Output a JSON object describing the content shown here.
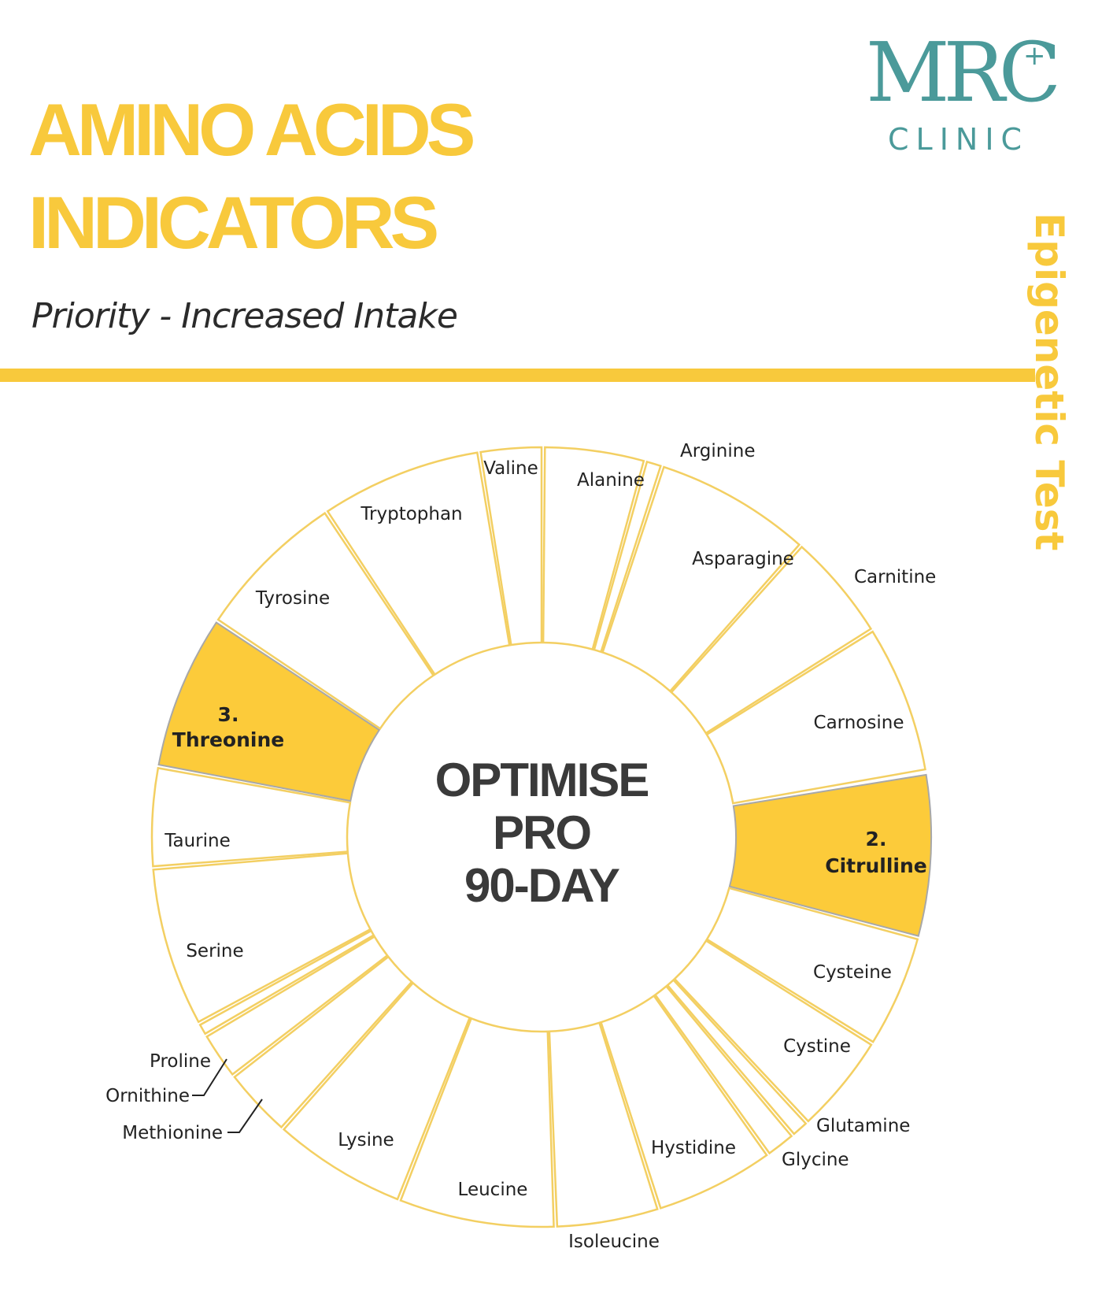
{
  "header": {
    "title_line1": "AMINO ACIDS",
    "title_line2": "INDICATORS",
    "subtitle": "Priority - Increased Intake",
    "side_label": "Epigenetic Test"
  },
  "logo": {
    "mark": "MRC",
    "sub": "CLINIC",
    "plus": "+"
  },
  "colors": {
    "accent": "#f8c93c",
    "highlight": "#fccb3a",
    "segment_border": "#f3cf62",
    "logo": "#4b9a9a",
    "center_text": "#3a3a3a"
  },
  "wheel": {
    "center_lines": [
      "OPTIMISE",
      "PRO",
      "90-DAY"
    ],
    "segments": [
      {
        "name": "Valine"
      },
      {
        "name": "Alanine"
      },
      {
        "name": "Arginine"
      },
      {
        "name": "Asparagine"
      },
      {
        "name": "Carnitine"
      },
      {
        "name": "Carnosine"
      },
      {
        "name": "Citrulline",
        "rank": "2.",
        "highlight": true
      },
      {
        "name": "Cysteine"
      },
      {
        "name": "Cystine"
      },
      {
        "name": "Glutamine"
      },
      {
        "name": "Glycine"
      },
      {
        "name": "Hystidine"
      },
      {
        "name": "Isoleucine"
      },
      {
        "name": "Leucine"
      },
      {
        "name": "Lysine"
      },
      {
        "name": "Methionine"
      },
      {
        "name": "Ornithine"
      },
      {
        "name": "Proline"
      },
      {
        "name": "Serine"
      },
      {
        "name": "Taurine"
      },
      {
        "name": "Threonine",
        "rank": "3.",
        "highlight": true
      },
      {
        "name": "Tyrosine"
      },
      {
        "name": "Tryptophan"
      }
    ]
  }
}
